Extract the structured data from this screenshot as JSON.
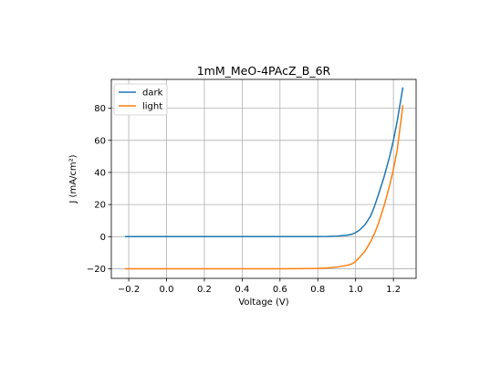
{
  "chart_data": {
    "type": "line",
    "title": "1mM_MeO-4PAcZ_B_6R",
    "xlabel": "Voltage (V)",
    "ylabel": "J (mA/cm²)",
    "xlim": [
      -0.292,
      1.32
    ],
    "ylim": [
      -26,
      98
    ],
    "xticks": [
      -0.2,
      0.0,
      0.2,
      0.4,
      0.6,
      0.8,
      1.0,
      1.2
    ],
    "xtick_labels": [
      "−0.2",
      "0.0",
      "0.2",
      "0.4",
      "0.6",
      "0.8",
      "1.0",
      "1.2"
    ],
    "yticks": [
      -20,
      0,
      20,
      40,
      60,
      80
    ],
    "ytick_labels": [
      "−20",
      "0",
      "20",
      "40",
      "60",
      "80"
    ],
    "grid": true,
    "legend": "top-left",
    "series": [
      {
        "name": "dark",
        "color": "#1f77b4",
        "x": [
          -0.22,
          -0.1,
          0.0,
          0.2,
          0.4,
          0.6,
          0.8,
          0.85,
          0.9,
          0.95,
          0.98,
          1.0,
          1.02,
          1.05,
          1.08,
          1.1,
          1.12,
          1.15,
          1.18,
          1.2,
          1.22,
          1.25
        ],
        "y": [
          0,
          0,
          0,
          0,
          0,
          0,
          0.05,
          0.1,
          0.3,
          0.8,
          1.5,
          2.5,
          4,
          7.5,
          13,
          19,
          26,
          37,
          50,
          60,
          72,
          93
        ]
      },
      {
        "name": "light",
        "color": "#ff7f0e",
        "x": [
          -0.22,
          -0.1,
          0.0,
          0.2,
          0.4,
          0.6,
          0.7,
          0.8,
          0.85,
          0.9,
          0.95,
          0.98,
          1.0,
          1.02,
          1.05,
          1.08,
          1.1,
          1.12,
          1.15,
          1.18,
          1.2,
          1.22,
          1.25
        ],
        "y": [
          -20,
          -20,
          -20,
          -20,
          -20,
          -20,
          -19.95,
          -19.8,
          -19.5,
          -19,
          -18,
          -17,
          -15.5,
          -13,
          -9,
          -3,
          2,
          8,
          19,
          32,
          42,
          54,
          82
        ]
      }
    ]
  }
}
